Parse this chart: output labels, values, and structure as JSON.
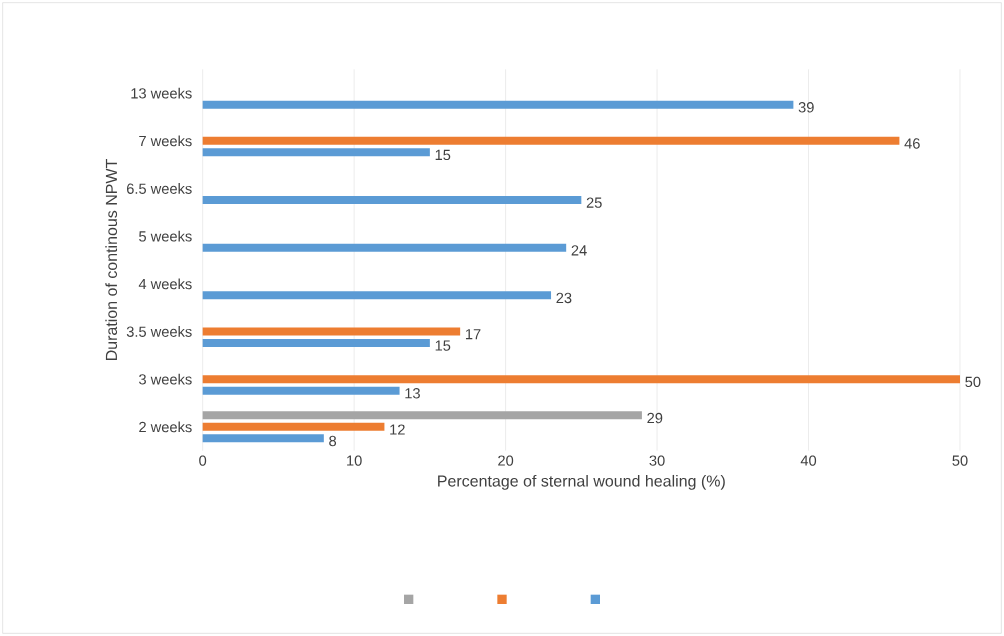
{
  "chart_data": {
    "type": "bar",
    "orientation": "horizontal",
    "xlabel": "Percentage of sternal wound healing (%)",
    "ylabel": "Duration of continous NPWT",
    "categories": [
      "13 weeks",
      "7 weeks",
      "6.5 weeks",
      "5 weeks",
      "4 weeks",
      "3.5 weeks",
      "3 weeks",
      "2 weeks"
    ],
    "series": [
      {
        "color": "#a5a5a5",
        "values": [
          null,
          null,
          null,
          null,
          null,
          null,
          null,
          29
        ]
      },
      {
        "color": "#ed7d31",
        "values": [
          null,
          46,
          null,
          null,
          null,
          17,
          50,
          12
        ]
      },
      {
        "color": "#5b9bd5",
        "values": [
          39,
          15,
          25,
          24,
          23,
          15,
          13,
          8
        ]
      }
    ],
    "xlim": [
      0,
      50
    ],
    "xticks": [
      0,
      10,
      20,
      30,
      40,
      50
    ],
    "grid": "x",
    "data_labels": true
  }
}
